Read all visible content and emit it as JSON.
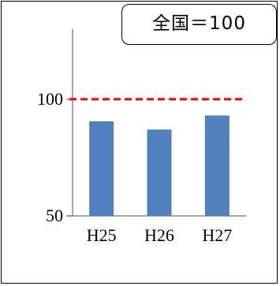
{
  "badge": {
    "text": "全国＝100"
  },
  "chart_data": {
    "type": "bar",
    "categories": [
      "H25",
      "H26",
      "H27"
    ],
    "values": [
      90.5,
      87,
      93
    ],
    "ylim": [
      50,
      130
    ],
    "yticks": [
      "100",
      "50"
    ],
    "yticks_values": [
      100,
      50
    ],
    "reference_line": {
      "value": 100,
      "color": "#ff0000",
      "style": "dashed"
    },
    "bar_color": "#4f81bd",
    "grid": false,
    "legend": "none"
  }
}
